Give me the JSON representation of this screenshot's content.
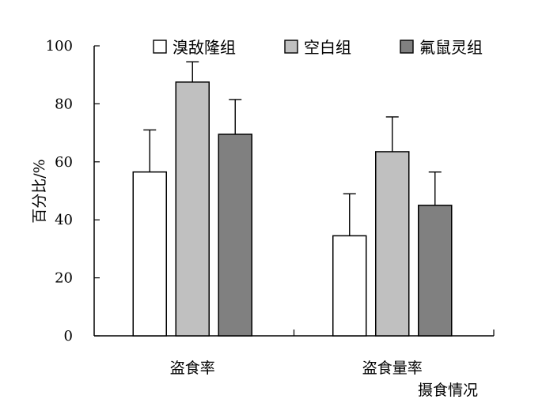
{
  "chart_data": {
    "type": "bar",
    "title": "",
    "xlabel": "摄食情况",
    "ylabel": "百分比/%",
    "ylim": [
      0,
      100
    ],
    "yticks": [
      0,
      20,
      40,
      60,
      80,
      100
    ],
    "categories": [
      "盗食率",
      "盗食量率"
    ],
    "series": [
      {
        "name": "溴敌隆组",
        "values": [
          56.5,
          34.5
        ],
        "errors": [
          14.5,
          14.5
        ],
        "color": "#ffffff"
      },
      {
        "name": "空白组",
        "values": [
          87.5,
          63.5
        ],
        "errors": [
          7,
          12
        ],
        "color": "#c0c0c0"
      },
      {
        "name": "氟鼠灵组",
        "values": [
          69.5,
          45
        ],
        "errors": [
          12,
          11.5
        ],
        "color": "#808080"
      }
    ],
    "legend_position": "top",
    "grid": false
  }
}
